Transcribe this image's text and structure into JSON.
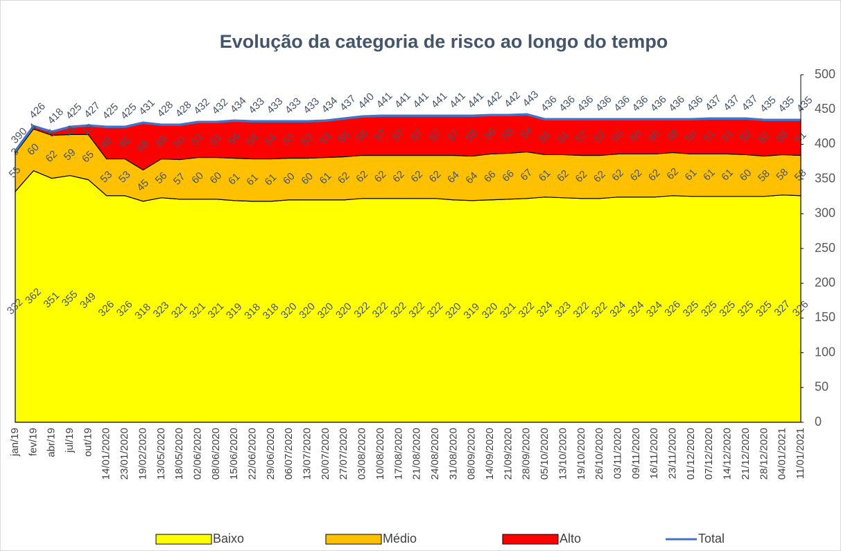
{
  "chart_data": {
    "type": "area",
    "stacked": true,
    "title": "Evolução da categoria de risco ao longo do tempo",
    "categories": [
      "jan/19",
      "fev/19",
      "abr/19",
      "jul/19",
      "out/19",
      "14/01/2020",
      "23/01/2020",
      "19/02/2020",
      "13/05/2020",
      "18/05/2020",
      "02/06/2020",
      "08/06/2020",
      "15/06/2020",
      "22/06/2020",
      "29/06/2020",
      "06/07/2020",
      "13/07/2020",
      "20/07/2020",
      "27/07/2020",
      "03/08/2020",
      "10/08/2020",
      "17/08/2020",
      "21/08/2020",
      "24/08/2020",
      "31/08/2020",
      "08/09/2020",
      "14/09/2020",
      "21/09/2020",
      "28/09/2020",
      "05/10/2020",
      "13/10/2020",
      "19/10/2020",
      "26/10/2020",
      "03/11/2020",
      "09/11/2020",
      "16/11/2020",
      "23/11/2020",
      "01/12/2020",
      "07/12/2020",
      "14/12/2020",
      "21/12/2020",
      "28/12/2020",
      "04/01/2021",
      "11/01/2021"
    ],
    "series": [
      {
        "name": "Baixo",
        "color": "#ffff00",
        "values": [
          332,
          362,
          351,
          355,
          349,
          326,
          326,
          318,
          323,
          321,
          321,
          321,
          319,
          318,
          318,
          320,
          320,
          320,
          320,
          322,
          322,
          322,
          322,
          322,
          320,
          319,
          320,
          321,
          322,
          324,
          323,
          322,
          322,
          324,
          324,
          324,
          326,
          325,
          325,
          325,
          325,
          325,
          327,
          326
        ]
      },
      {
        "name": "Médio",
        "color": "#ffc000",
        "values": [
          55,
          60,
          62,
          59,
          65,
          53,
          53,
          45,
          56,
          57,
          60,
          60,
          61,
          61,
          61,
          60,
          60,
          61,
          62,
          62,
          62,
          62,
          62,
          62,
          64,
          64,
          66,
          66,
          67,
          61,
          62,
          62,
          62,
          62,
          62,
          62,
          62,
          61,
          61,
          61,
          60,
          58,
          58,
          58
        ]
      },
      {
        "name": "Alto",
        "color": "#ff0000",
        "values": [
          3,
          4,
          5,
          11,
          13,
          46,
          46,
          68,
          49,
          50,
          51,
          51,
          54,
          54,
          54,
          53,
          53,
          53,
          55,
          56,
          57,
          57,
          57,
          57,
          57,
          58,
          56,
          55,
          54,
          51,
          51,
          52,
          52,
          50,
          50,
          50,
          48,
          50,
          51,
          51,
          52,
          52,
          50,
          51
        ]
      },
      {
        "name": "Total",
        "color": "#4472c4",
        "type": "line",
        "values": [
          390,
          426,
          418,
          425,
          427,
          425,
          425,
          431,
          428,
          428,
          432,
          432,
          434,
          433,
          433,
          433,
          433,
          434,
          437,
          440,
          441,
          441,
          441,
          441,
          441,
          441,
          442,
          442,
          443,
          436,
          436,
          436,
          436,
          436,
          436,
          436,
          436,
          436,
          437,
          437,
          437,
          435,
          435,
          435
        ]
      }
    ],
    "ylim": [
      0,
      500
    ],
    "yticks": [
      0,
      50,
      100,
      150,
      200,
      250,
      300,
      350,
      400,
      450,
      500
    ],
    "y_axis_side": "right",
    "legend": "bottom"
  }
}
